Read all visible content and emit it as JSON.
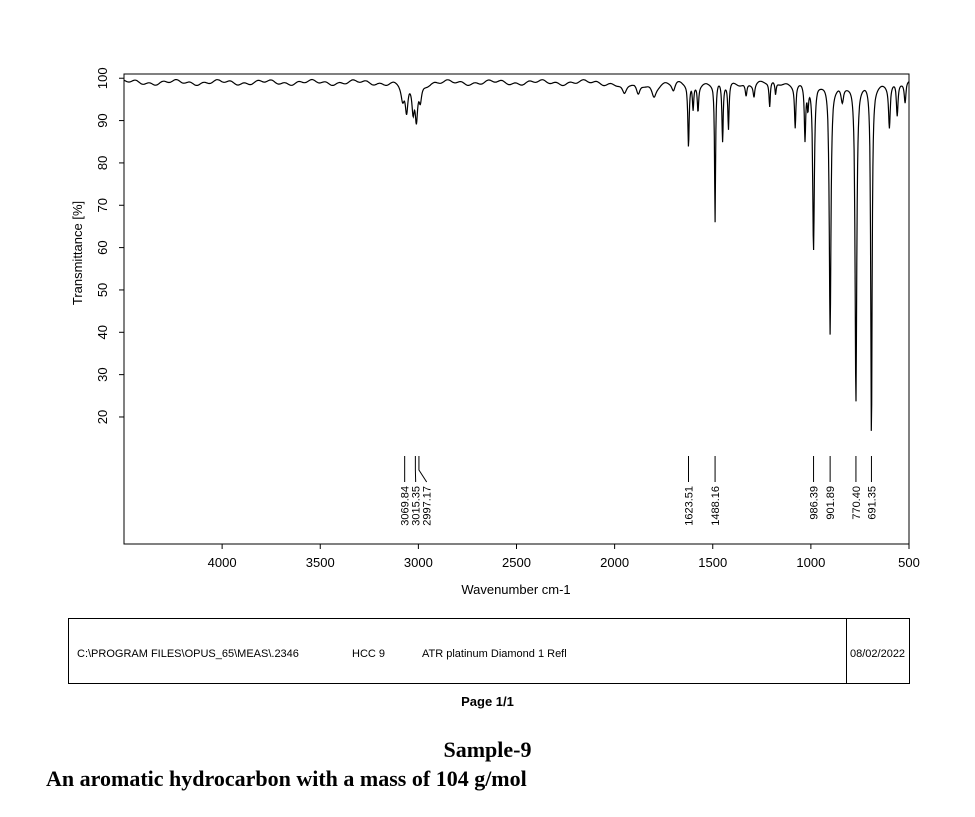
{
  "chart_data": {
    "type": "line",
    "xlabel": "Wavenumber cm-1",
    "ylabel": "Transmittance [%]",
    "xlim": [
      4500,
      500
    ],
    "ylim": [
      -10,
      101
    ],
    "x_ticks": [
      4000,
      3500,
      3000,
      2500,
      2000,
      1500,
      1000,
      500
    ],
    "y_ticks": [
      20,
      30,
      40,
      50,
      60,
      70,
      80,
      90,
      100
    ],
    "grid": false,
    "baseline": 99,
    "peaks": [
      {
        "x": 3069.84,
        "label": "3069.84"
      },
      {
        "x": 3015.35,
        "label": "3015.35"
      },
      {
        "x": 2997.17,
        "label": "2997.17"
      },
      {
        "x": 1623.51,
        "label": "1623.51"
      },
      {
        "x": 1488.16,
        "label": "1488.16"
      },
      {
        "x": 986.39,
        "label": "986.39"
      },
      {
        "x": 901.89,
        "label": "901.89"
      },
      {
        "x": 770.4,
        "label": "770.40"
      },
      {
        "x": 691.35,
        "label": "691.35"
      }
    ],
    "bands": [
      {
        "center": 3080,
        "depth": 4,
        "width": 10
      },
      {
        "center": 3060,
        "depth": 7,
        "width": 8
      },
      {
        "center": 3027,
        "depth": 6,
        "width": 7
      },
      {
        "center": 3010,
        "depth": 8,
        "width": 7
      },
      {
        "center": 2990,
        "depth": 4,
        "width": 8
      },
      {
        "center": 1950,
        "depth": 3,
        "width": 15
      },
      {
        "center": 1880,
        "depth": 3,
        "width": 12
      },
      {
        "center": 1800,
        "depth": 3,
        "width": 14
      },
      {
        "center": 1700,
        "depth": 2,
        "width": 10
      },
      {
        "center": 1623.51,
        "depth": 15,
        "width": 4
      },
      {
        "center": 1600,
        "depth": 6,
        "width": 4
      },
      {
        "center": 1575,
        "depth": 6,
        "width": 4
      },
      {
        "center": 1488.16,
        "depth": 33,
        "width": 3
      },
      {
        "center": 1450,
        "depth": 14,
        "width": 4
      },
      {
        "center": 1420,
        "depth": 11,
        "width": 4
      },
      {
        "center": 1330,
        "depth": 3,
        "width": 5
      },
      {
        "center": 1290,
        "depth": 3,
        "width": 5
      },
      {
        "center": 1210,
        "depth": 6,
        "width": 4
      },
      {
        "center": 1180,
        "depth": 3,
        "width": 4
      },
      {
        "center": 1080,
        "depth": 10,
        "width": 4
      },
      {
        "center": 1030,
        "depth": 13,
        "width": 4
      },
      {
        "center": 1015,
        "depth": 5,
        "width": 4
      },
      {
        "center": 986.39,
        "depth": 40,
        "width": 5
      },
      {
        "center": 901.89,
        "depth": 59,
        "width": 5
      },
      {
        "center": 840,
        "depth": 4,
        "width": 8
      },
      {
        "center": 770.4,
        "depth": 76,
        "width": 5
      },
      {
        "center": 691.35,
        "depth": 84,
        "width": 4
      },
      {
        "center": 600,
        "depth": 10,
        "width": 5
      },
      {
        "center": 560,
        "depth": 8,
        "width": 5
      },
      {
        "center": 520,
        "depth": 5,
        "width": 5
      }
    ]
  },
  "info": {
    "path": "C:\\PROGRAM FILES\\OPUS_65\\MEAS\\.2346",
    "sample_code": "HCC 9",
    "method": "ATR platinum Diamond 1 Refl",
    "date": "08/02/2022"
  },
  "page_label": "Page 1/1",
  "sample_title": "Sample-9",
  "sample_desc": "An aromatic hydrocarbon with a mass of 104 g/mol"
}
